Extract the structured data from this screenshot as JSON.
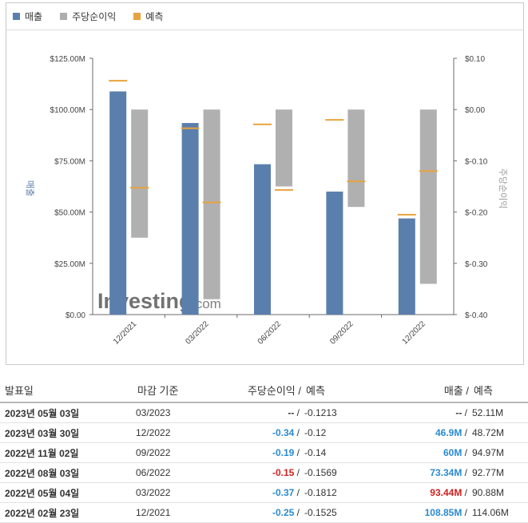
{
  "legend": [
    {
      "label": "매출",
      "color": "#5b7fad"
    },
    {
      "label": "주당순이익",
      "color": "#adadad"
    },
    {
      "label": "예측",
      "color": "#e8a33d"
    }
  ],
  "watermark": {
    "brand": "Investing",
    "suffix": ".com"
  },
  "chart_data": {
    "type": "bar",
    "categories": [
      "12/2021",
      "03/2022",
      "06/2022",
      "09/2022",
      "12/2022"
    ],
    "left_axis": {
      "label": "매출",
      "ticks": [
        "$0.00",
        "$25.00M",
        "$50.00M",
        "$75.00M",
        "$100.00M",
        "$125.00M"
      ],
      "ylim": [
        0,
        125
      ]
    },
    "right_axis": {
      "label": "주당순이익",
      "ticks": [
        "$-0.40",
        "$-0.30",
        "$-0.20",
        "$-0.10",
        "$0.00",
        "$0.10"
      ],
      "ylim": [
        -0.4,
        0.1
      ]
    },
    "series": [
      {
        "name": "매출",
        "axis": "left",
        "values": [
          108.85,
          93.44,
          73.34,
          60,
          46.9
        ]
      },
      {
        "name": "주당순이익",
        "axis": "right",
        "values": [
          -0.25,
          -0.37,
          -0.15,
          -0.19,
          -0.34
        ]
      },
      {
        "name": "예측",
        "of": "매출",
        "axis": "left",
        "values": [
          114.06,
          90.88,
          92.77,
          94.97,
          48.72
        ]
      },
      {
        "name": "예측",
        "of": "주당순이익",
        "axis": "right",
        "values": [
          -0.1525,
          -0.1812,
          -0.1569,
          -0.14,
          -0.12
        ]
      }
    ],
    "grid": false,
    "legend_position": "top-left"
  },
  "table": {
    "headers": {
      "date": "발표일",
      "period": "마감 기준",
      "eps": "주당순이익",
      "eps_fc": "예측",
      "rev": "매출",
      "rev_fc": "예측",
      "sep": "/"
    },
    "rows": [
      {
        "date": "2023년 05월 03일",
        "period": "03/2023",
        "eps": "--",
        "eps_cls": "plain",
        "eps_fc": "-0.1213",
        "rev": "--",
        "rev_cls": "plain",
        "rev_fc": "52.11M"
      },
      {
        "date": "2023년 03월 30일",
        "period": "12/2022",
        "eps": "-0.34",
        "eps_cls": "blue",
        "eps_fc": "-0.12",
        "rev": "46.9M",
        "rev_cls": "blue",
        "rev_fc": "48.72M"
      },
      {
        "date": "2022년 11월 02일",
        "period": "09/2022",
        "eps": "-0.19",
        "eps_cls": "blue",
        "eps_fc": "-0.14",
        "rev": "60M",
        "rev_cls": "blue",
        "rev_fc": "94.97M"
      },
      {
        "date": "2022년 08월 03일",
        "period": "06/2022",
        "eps": "-0.15",
        "eps_cls": "red",
        "eps_fc": "-0.1569",
        "rev": "73.34M",
        "rev_cls": "blue",
        "rev_fc": "92.77M"
      },
      {
        "date": "2022년 05월 04일",
        "period": "03/2022",
        "eps": "-0.37",
        "eps_cls": "blue",
        "eps_fc": "-0.1812",
        "rev": "93.44M",
        "rev_cls": "red",
        "rev_fc": "90.88M"
      },
      {
        "date": "2022년 02월 23일",
        "period": "12/2021",
        "eps": "-0.25",
        "eps_cls": "blue",
        "eps_fc": "-0.1525",
        "rev": "108.85M",
        "rev_cls": "blue",
        "rev_fc": "114.06M"
      }
    ]
  }
}
